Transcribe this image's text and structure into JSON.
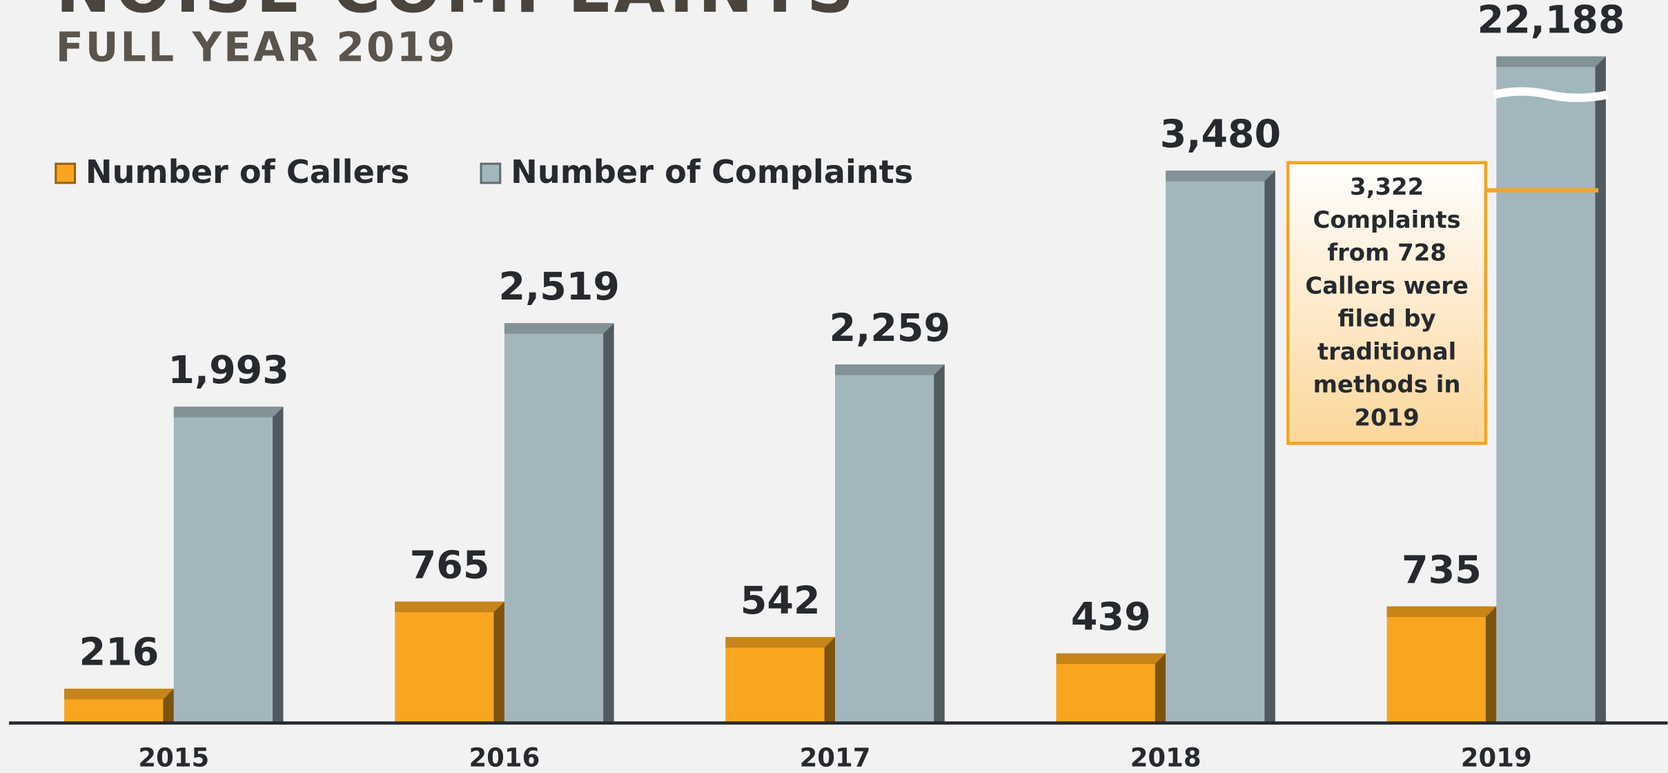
{
  "chart_data": {
    "type": "bar",
    "title": "NOISE COMPLAINTS",
    "subtitle": "FULL YEAR 2019",
    "categories": [
      "2015",
      "2016",
      "2017",
      "2018",
      "2019"
    ],
    "series": [
      {
        "name": "Number of Callers",
        "color": "#f9a51f",
        "values": [
          216,
          765,
          542,
          439,
          735
        ],
        "value_labels": [
          "216",
          "765",
          "542",
          "439",
          "735"
        ]
      },
      {
        "name": "Number of Complaints",
        "color": "#a2b6bd",
        "values": [
          1993,
          2519,
          2259,
          3480,
          22188
        ],
        "value_labels": [
          "1,993",
          "2,519",
          "2,259",
          "3,480",
          "22,188"
        ]
      }
    ],
    "ylim": [
      0,
      4200
    ],
    "annotation": [
      "3,322",
      "Complaints",
      "from 728",
      "Callers were",
      "filed by",
      "traditional",
      "methods in",
      "2019"
    ]
  }
}
